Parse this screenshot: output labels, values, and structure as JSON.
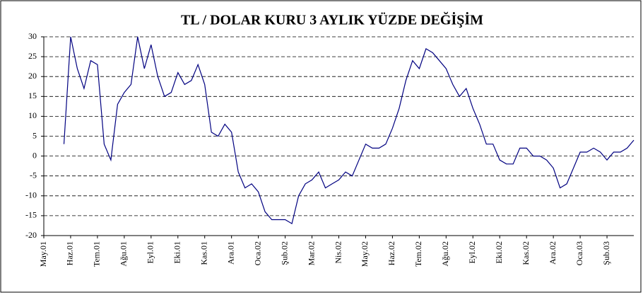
{
  "chart_data": {
    "type": "line",
    "title": "TL / DOLAR KURU  3 AYLIK YÜZDE  DEĞİŞİM",
    "categories": [
      "May.01",
      null,
      null,
      null,
      "Haz.01",
      null,
      null,
      null,
      "Tem.01",
      null,
      null,
      null,
      "Ağu.01",
      null,
      null,
      null,
      "Eyl.01",
      null,
      null,
      null,
      "Eki.01",
      null,
      null,
      null,
      "Kas.01",
      null,
      null,
      null,
      "Ara.01",
      null,
      null,
      null,
      "Oca.02",
      null,
      null,
      null,
      "Şub.02",
      null,
      null,
      null,
      "Mar.02",
      null,
      null,
      null,
      "Nis.02",
      null,
      null,
      null,
      "May.02",
      null,
      null,
      null,
      "Haz.02",
      null,
      null,
      null,
      "Tem.02",
      null,
      null,
      null,
      "Ağu.02",
      null,
      null,
      null,
      "Eyl.02",
      null,
      null,
      null,
      "Eki.02",
      null,
      null,
      null,
      "Kas.02",
      null,
      null,
      null,
      "Ara.02",
      null,
      null,
      null,
      "Oca.03",
      null,
      null,
      null,
      "Şub.03",
      null,
      null,
      null,
      null
    ],
    "series": [
      {
        "color": "#000080",
        "values": [
          null,
          null,
          null,
          3,
          30,
          22,
          17,
          24,
          23,
          3,
          -1,
          13,
          16,
          18,
          30,
          22,
          28,
          20,
          15,
          16,
          21,
          18,
          19,
          23,
          18,
          6,
          5,
          8,
          6,
          -4,
          -8,
          -7,
          -9,
          -14,
          -16,
          -16,
          -16,
          -17,
          -10,
          -7,
          -6,
          -4,
          -8,
          -7,
          -6,
          -4,
          -5,
          -1,
          3,
          2,
          2,
          3,
          7,
          12,
          19,
          24,
          22,
          27,
          26,
          24,
          22,
          18,
          15,
          17,
          12,
          8,
          3,
          3,
          -1,
          -2,
          -2,
          2,
          2,
          0,
          0,
          -1,
          -3,
          -8,
          -7,
          -3,
          1,
          1,
          2,
          1,
          -1,
          1,
          1,
          2,
          4
        ]
      }
    ],
    "ylim": [
      -20,
      30
    ],
    "yticks": [
      -20,
      -15,
      -10,
      -5,
      0,
      5,
      10,
      15,
      20,
      25,
      30
    ],
    "grid": true
  }
}
